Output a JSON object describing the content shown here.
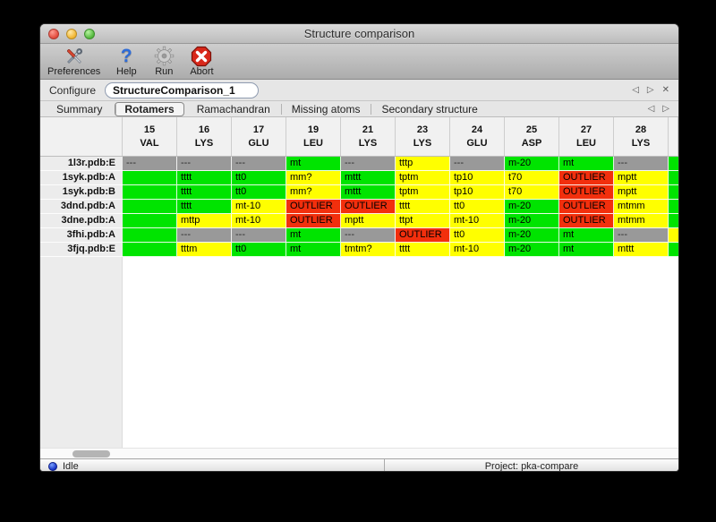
{
  "window": {
    "title": "Structure comparison"
  },
  "toolbar": {
    "items": [
      {
        "label": "Preferences",
        "icon": "tools-icon"
      },
      {
        "label": "Help",
        "icon": "help-icon",
        "glyph": "?"
      },
      {
        "label": "Run",
        "icon": "gear-icon"
      },
      {
        "label": "Abort",
        "icon": "abort-icon"
      }
    ]
  },
  "configure": {
    "label": "Configure",
    "field_value": "StructureComparison_1"
  },
  "icons": {
    "prev_arrow": "◁",
    "next_arrow": "▷",
    "close": "✕"
  },
  "tabs": [
    {
      "label": "Summary",
      "selected": false
    },
    {
      "label": "Rotamers",
      "selected": true
    },
    {
      "label": "Ramachandran",
      "selected": false
    },
    {
      "label": "Missing atoms",
      "selected": false
    },
    {
      "label": "Secondary structure",
      "selected": false
    }
  ],
  "colors": {
    "green": "#00e400",
    "yellow": "#ffff00",
    "red": "#f22f0d",
    "gray": "#999999",
    "gray_text": "#2a2a2a",
    "default_text": "#000000"
  },
  "table": {
    "columns": [
      {
        "num": "15",
        "res": "VAL"
      },
      {
        "num": "16",
        "res": "LYS"
      },
      {
        "num": "17",
        "res": "GLU"
      },
      {
        "num": "19",
        "res": "LEU"
      },
      {
        "num": "21",
        "res": "LYS"
      },
      {
        "num": "23",
        "res": "LYS"
      },
      {
        "num": "24",
        "res": "GLU"
      },
      {
        "num": "25",
        "res": "ASP"
      },
      {
        "num": "27",
        "res": "LEU"
      },
      {
        "num": "28",
        "res": "LYS"
      }
    ],
    "rows": [
      {
        "label": "1l3r.pdb:E",
        "overflow": "green",
        "cells": [
          {
            "text": "---",
            "status": "gray"
          },
          {
            "text": "---",
            "status": "gray"
          },
          {
            "text": "---",
            "status": "gray"
          },
          {
            "text": "mt",
            "status": "green"
          },
          {
            "text": "---",
            "status": "gray"
          },
          {
            "text": "tttp",
            "status": "yellow"
          },
          {
            "text": "---",
            "status": "gray"
          },
          {
            "text": "m-20",
            "status": "green"
          },
          {
            "text": "mt",
            "status": "green"
          },
          {
            "text": "---",
            "status": "gray"
          }
        ]
      },
      {
        "label": "1syk.pdb:A",
        "overflow": "green",
        "cells": [
          {
            "text": "",
            "status": "green"
          },
          {
            "text": "tttt",
            "status": "green"
          },
          {
            "text": "tt0",
            "status": "green"
          },
          {
            "text": "mm?",
            "status": "yellow"
          },
          {
            "text": "mttt",
            "status": "green"
          },
          {
            "text": "tptm",
            "status": "yellow"
          },
          {
            "text": "tp10",
            "status": "yellow"
          },
          {
            "text": "t70",
            "status": "yellow"
          },
          {
            "text": "OUTLIER",
            "status": "red"
          },
          {
            "text": "mptt",
            "status": "yellow"
          }
        ]
      },
      {
        "label": "1syk.pdb:B",
        "overflow": "green",
        "cells": [
          {
            "text": "",
            "status": "green"
          },
          {
            "text": "tttt",
            "status": "green"
          },
          {
            "text": "tt0",
            "status": "green"
          },
          {
            "text": "mm?",
            "status": "yellow"
          },
          {
            "text": "mttt",
            "status": "green"
          },
          {
            "text": "tptm",
            "status": "yellow"
          },
          {
            "text": "tp10",
            "status": "yellow"
          },
          {
            "text": "t70",
            "status": "yellow"
          },
          {
            "text": "OUTLIER",
            "status": "red"
          },
          {
            "text": "mptt",
            "status": "yellow"
          }
        ]
      },
      {
        "label": "3dnd.pdb:A",
        "overflow": "green",
        "cells": [
          {
            "text": "",
            "status": "green"
          },
          {
            "text": "tttt",
            "status": "green"
          },
          {
            "text": "mt-10",
            "status": "yellow"
          },
          {
            "text": "OUTLIER",
            "status": "red"
          },
          {
            "text": "OUTLIER",
            "status": "red"
          },
          {
            "text": "tttt",
            "status": "yellow"
          },
          {
            "text": "tt0",
            "status": "yellow"
          },
          {
            "text": "m-20",
            "status": "green"
          },
          {
            "text": "OUTLIER",
            "status": "red"
          },
          {
            "text": "mtmm",
            "status": "yellow"
          }
        ]
      },
      {
        "label": "3dne.pdb:A",
        "overflow": "green",
        "cells": [
          {
            "text": "",
            "status": "green"
          },
          {
            "text": "mttp",
            "status": "yellow"
          },
          {
            "text": "mt-10",
            "status": "yellow"
          },
          {
            "text": "OUTLIER",
            "status": "red"
          },
          {
            "text": "mptt",
            "status": "yellow"
          },
          {
            "text": "ttpt",
            "status": "yellow"
          },
          {
            "text": "mt-10",
            "status": "yellow"
          },
          {
            "text": "m-20",
            "status": "green"
          },
          {
            "text": "OUTLIER",
            "status": "red"
          },
          {
            "text": "mtmm",
            "status": "yellow"
          }
        ]
      },
      {
        "label": "3fhi.pdb:A",
        "overflow": "yellow",
        "cells": [
          {
            "text": "",
            "status": "green"
          },
          {
            "text": "---",
            "status": "gray"
          },
          {
            "text": "---",
            "status": "gray"
          },
          {
            "text": "mt",
            "status": "green"
          },
          {
            "text": "---",
            "status": "gray"
          },
          {
            "text": "OUTLIER",
            "status": "red"
          },
          {
            "text": "tt0",
            "status": "yellow"
          },
          {
            "text": "m-20",
            "status": "green"
          },
          {
            "text": "mt",
            "status": "green"
          },
          {
            "text": "---",
            "status": "gray"
          }
        ]
      },
      {
        "label": "3fjq.pdb:E",
        "overflow": "green",
        "cells": [
          {
            "text": "",
            "status": "green"
          },
          {
            "text": "tttm",
            "status": "yellow"
          },
          {
            "text": "tt0",
            "status": "green"
          },
          {
            "text": "mt",
            "status": "green"
          },
          {
            "text": "tmtm?",
            "status": "yellow"
          },
          {
            "text": "tttt",
            "status": "yellow"
          },
          {
            "text": "mt-10",
            "status": "yellow"
          },
          {
            "text": "m-20",
            "status": "green"
          },
          {
            "text": "mt",
            "status": "green"
          },
          {
            "text": "mttt",
            "status": "yellow"
          }
        ]
      }
    ]
  },
  "status_bar": {
    "left": "Idle",
    "right": "Project: pka-compare"
  }
}
